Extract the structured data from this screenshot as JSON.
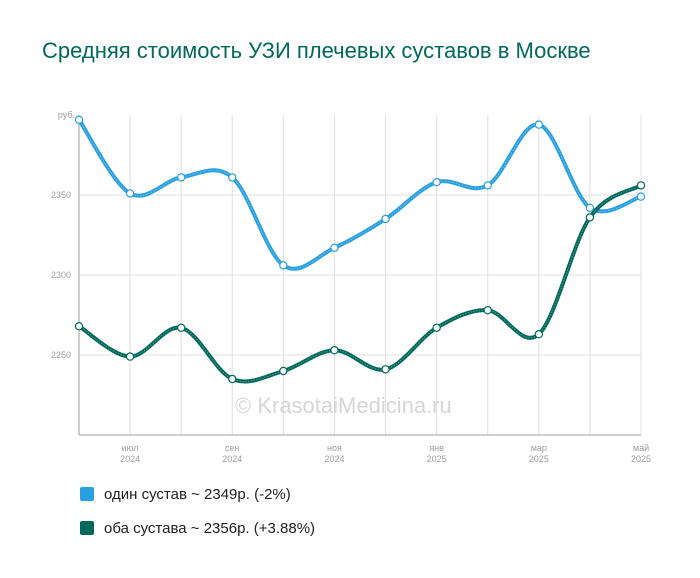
{
  "title": "Средняя стоимость УЗИ плечевых суставов в Москве",
  "watermark": "© KrasotaiMedicina.ru",
  "chart_data": {
    "type": "line",
    "y_unit": "руб.",
    "yticks": [
      2250,
      2300,
      2350
    ],
    "ylim": [
      2200,
      2400
    ],
    "x_ticks": [
      {
        "label": [
          "июл",
          "2024"
        ]
      },
      {
        "label": [
          "сен",
          "2024"
        ]
      },
      {
        "label": [
          "ноя",
          "2024"
        ]
      },
      {
        "label": [
          "янв",
          "2025"
        ]
      },
      {
        "label": [
          "мар",
          "2025"
        ]
      },
      {
        "label": [
          "май",
          "2025"
        ]
      }
    ],
    "categories": [
      "2024-06",
      "2024-07",
      "2024-08",
      "2024-09",
      "2024-10",
      "2024-11",
      "2024-12",
      "2025-01",
      "2025-02",
      "2025-03",
      "2025-04",
      "2025-05"
    ],
    "grid": true,
    "series": [
      {
        "name": "один сустав",
        "color": "#29a0e0",
        "values": [
          2397,
          2351,
          2361,
          2361,
          2306,
          2317,
          2335,
          2358,
          2356,
          2394,
          2342,
          2349
        ]
      },
      {
        "name": "оба сустава",
        "color": "#00695c",
        "values": [
          2268,
          2249,
          2267,
          2235,
          2240,
          2253,
          2241,
          2267,
          2278,
          2263,
          2336,
          2356
        ]
      }
    ]
  },
  "legend": [
    {
      "text": "один сустав ~ 2349р. (-2%)",
      "color": "#29a0e0"
    },
    {
      "text": "оба сустава ~ 2356р. (+3.88%)",
      "color": "#00695c"
    }
  ]
}
